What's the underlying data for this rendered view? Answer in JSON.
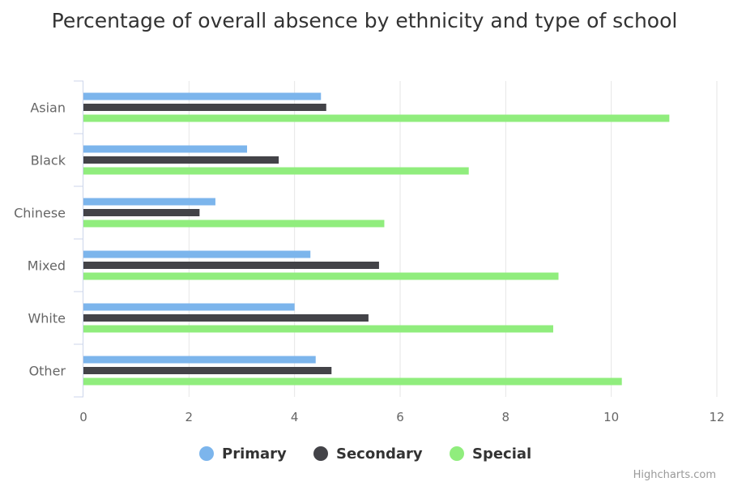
{
  "chart_data": {
    "type": "bar",
    "orientation": "horizontal",
    "title": "Percentage of overall absence by ethnicity and type of school",
    "categories": [
      "Asian",
      "Black",
      "Chinese",
      "Mixed",
      "White",
      "Other"
    ],
    "series": [
      {
        "name": "Primary",
        "color": "#7cb5ec",
        "values": [
          4.5,
          3.1,
          2.5,
          4.3,
          4.0,
          4.4
        ]
      },
      {
        "name": "Secondary",
        "color": "#434348",
        "values": [
          4.6,
          3.7,
          2.2,
          5.6,
          5.4,
          4.7
        ]
      },
      {
        "name": "Special",
        "color": "#90ed7d",
        "values": [
          11.1,
          7.3,
          5.7,
          9.0,
          8.9,
          10.2
        ]
      }
    ],
    "xlim": [
      0,
      12
    ],
    "ticks": [
      "0",
      "2",
      "4",
      "6",
      "8",
      "10",
      "12"
    ],
    "grid": true,
    "legend_position": "bottom",
    "credits": "Highcharts.com"
  }
}
